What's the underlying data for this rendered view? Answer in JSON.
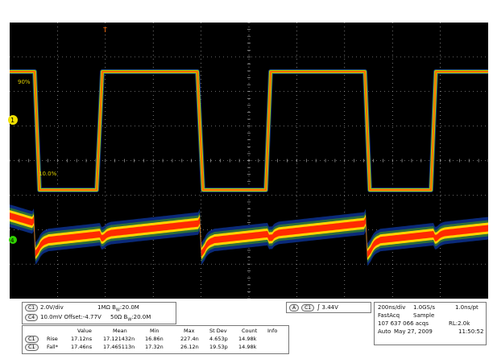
{
  "colors": {
    "background": "#000000",
    "grid": "#c8c8c8",
    "ch1_trace": "#ff6a00",
    "ch1_edge": "#a8d000",
    "ch4_core": "#ff2a00",
    "ch4_mid": "#ffd400",
    "ch4_outer": "#0a2a7a",
    "ch1_marker": "#f0e000",
    "ch4_marker": "#30d000"
  },
  "display": {
    "top_marker": "T",
    "ch1_marker": "1",
    "ch4_marker": "4",
    "ch1_hi_label": "90%",
    "ch1_lo_label": "10.0%"
  },
  "channel_info": {
    "ch1_id": "C1",
    "ch1_scale": "2.0V/div",
    "ch1_coupling": "1MΩ",
    "ch1_bw": "B",
    "ch1_bw_sub": "W",
    "ch1_bw_value": ":20.0M",
    "ch4_id": "C4",
    "ch4_scale": "10.0mV",
    "ch4_offset": "Offset:-4.77V",
    "ch4_coupling": "50Ω",
    "ch4_bw": "B",
    "ch4_bw_sub": "W",
    "ch4_bw_value": ":20.0M"
  },
  "trigger": {
    "mode_id": "A",
    "source": "C1",
    "slope_icon": "rising-edge-icon",
    "slope_glyph": "∫",
    "level": "3.44V"
  },
  "timebase": {
    "scale": "200ns/div",
    "sample_rate": "1.0GS/s",
    "resolution": "1.0ns/pt",
    "acq_mode": "FastAcq",
    "acq_type": "Sample",
    "acqs": "107 637 066 acqs",
    "record_length": "RL:2.0k",
    "run_mode": "Auto",
    "date": "May 27, 2009",
    "time": "11:50:52"
  },
  "measurements": {
    "headers": [
      "Value",
      "Mean",
      "Min",
      "Max",
      "St Dev",
      "Count",
      "Info"
    ],
    "rows": [
      {
        "channel": "C1",
        "name": "Rise",
        "value": "17.12ns",
        "mean": "17.121432n",
        "min": "16.86n",
        "max": "227.4n",
        "stdev": "4.653p",
        "count": "14.98k",
        "info": ""
      },
      {
        "channel": "C1",
        "name": "Fall*",
        "value": "17.46ns",
        "mean": "17.465113n",
        "min": "17.32n",
        "max": "26.12n",
        "stdev": "19.53p",
        "count": "14.98k",
        "info": ""
      }
    ]
  }
}
